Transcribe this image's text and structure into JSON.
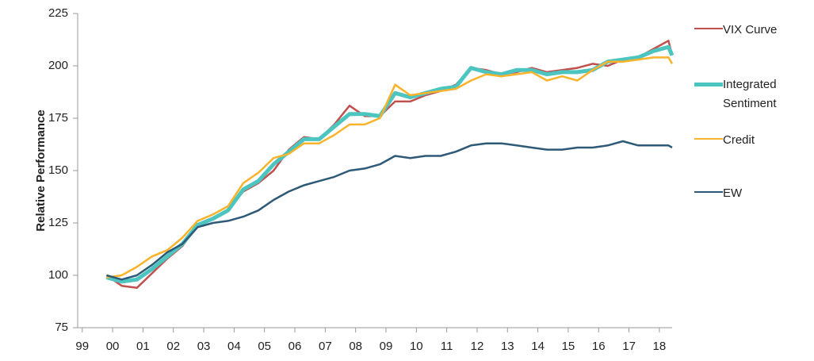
{
  "chart_data": {
    "type": "line",
    "y_label": "Relative Performance",
    "x": [
      1999.8,
      2000.3,
      2000.8,
      2001.3,
      2001.8,
      2002.3,
      2002.8,
      2003.3,
      2003.8,
      2004.3,
      2004.8,
      2005.3,
      2005.8,
      2006.3,
      2006.8,
      2007.3,
      2007.8,
      2008.3,
      2008.8,
      2009.3,
      2009.8,
      2010.3,
      2010.8,
      2011.3,
      2011.8,
      2012.3,
      2012.8,
      2013.3,
      2013.8,
      2014.3,
      2014.8,
      2015.3,
      2015.8,
      2016.3,
      2016.8,
      2017.3,
      2017.8,
      2018.3,
      2018.42
    ],
    "series": [
      {
        "name": "VIX Curve",
        "color": "#c0504d",
        "width": 2.5,
        "values": [
          100,
          95,
          94,
          101,
          108,
          114,
          124,
          127,
          131,
          140,
          144,
          150,
          160,
          166,
          165,
          172,
          181,
          176,
          176,
          183,
          183,
          186,
          188,
          191,
          199,
          198,
          196,
          197,
          199,
          197,
          198,
          199,
          201,
          200,
          203,
          204,
          208,
          212,
          205
        ]
      },
      {
        "name": "Integrated Sentiment",
        "color": "#4cc4bf",
        "width": 5,
        "values": [
          99,
          97,
          98,
          103,
          109,
          115,
          124,
          127,
          131,
          141,
          145,
          153,
          159,
          165,
          165,
          171,
          177,
          177,
          176,
          187,
          185,
          187,
          189,
          190,
          199,
          197,
          196,
          198,
          198,
          196,
          197,
          197,
          198,
          202,
          203,
          204,
          207,
          209,
          205
        ]
      },
      {
        "name": "Credit",
        "color": "#f9b32b",
        "width": 2.5,
        "values": [
          99,
          100,
          104,
          109,
          112,
          118,
          126,
          129,
          133,
          144,
          149,
          156,
          158,
          163,
          163,
          167,
          172,
          172,
          175,
          191,
          186,
          187,
          188,
          189,
          193,
          196,
          195,
          196,
          197,
          193,
          195,
          193,
          198,
          202,
          202,
          203,
          204,
          204,
          201
        ]
      },
      {
        "name": "EW",
        "color": "#2e5a78",
        "width": 2.5,
        "values": [
          100,
          98,
          100,
          105,
          111,
          115,
          123,
          125,
          126,
          128,
          131,
          136,
          140,
          143,
          145,
          147,
          150,
          151,
          153,
          157,
          156,
          157,
          157,
          159,
          162,
          163,
          163,
          162,
          161,
          160,
          160,
          161,
          161,
          162,
          164,
          162,
          162,
          162,
          161
        ]
      }
    ],
    "xlim": [
      1998.85,
      2018.42
    ],
    "xticks": [
      {
        "value": 1999,
        "label": "99"
      },
      {
        "value": 2000,
        "label": "00"
      },
      {
        "value": 2001,
        "label": "01"
      },
      {
        "value": 2002,
        "label": "02"
      },
      {
        "value": 2003,
        "label": "03"
      },
      {
        "value": 2004,
        "label": "04"
      },
      {
        "value": 2005,
        "label": "05"
      },
      {
        "value": 2006,
        "label": "06"
      },
      {
        "value": 2007,
        "label": "07"
      },
      {
        "value": 2008,
        "label": "08"
      },
      {
        "value": 2009,
        "label": "09"
      },
      {
        "value": 2010,
        "label": "10"
      },
      {
        "value": 2011,
        "label": "11"
      },
      {
        "value": 2012,
        "label": "12"
      },
      {
        "value": 2013,
        "label": "13"
      },
      {
        "value": 2014,
        "label": "14"
      },
      {
        "value": 2015,
        "label": "15"
      },
      {
        "value": 2016,
        "label": "16"
      },
      {
        "value": 2017,
        "label": "17"
      },
      {
        "value": 2018,
        "label": "18"
      }
    ],
    "ylim": [
      75,
      225
    ],
    "yticks": [
      75,
      100,
      125,
      150,
      175,
      200,
      225
    ],
    "grid": false,
    "legend": "right"
  }
}
